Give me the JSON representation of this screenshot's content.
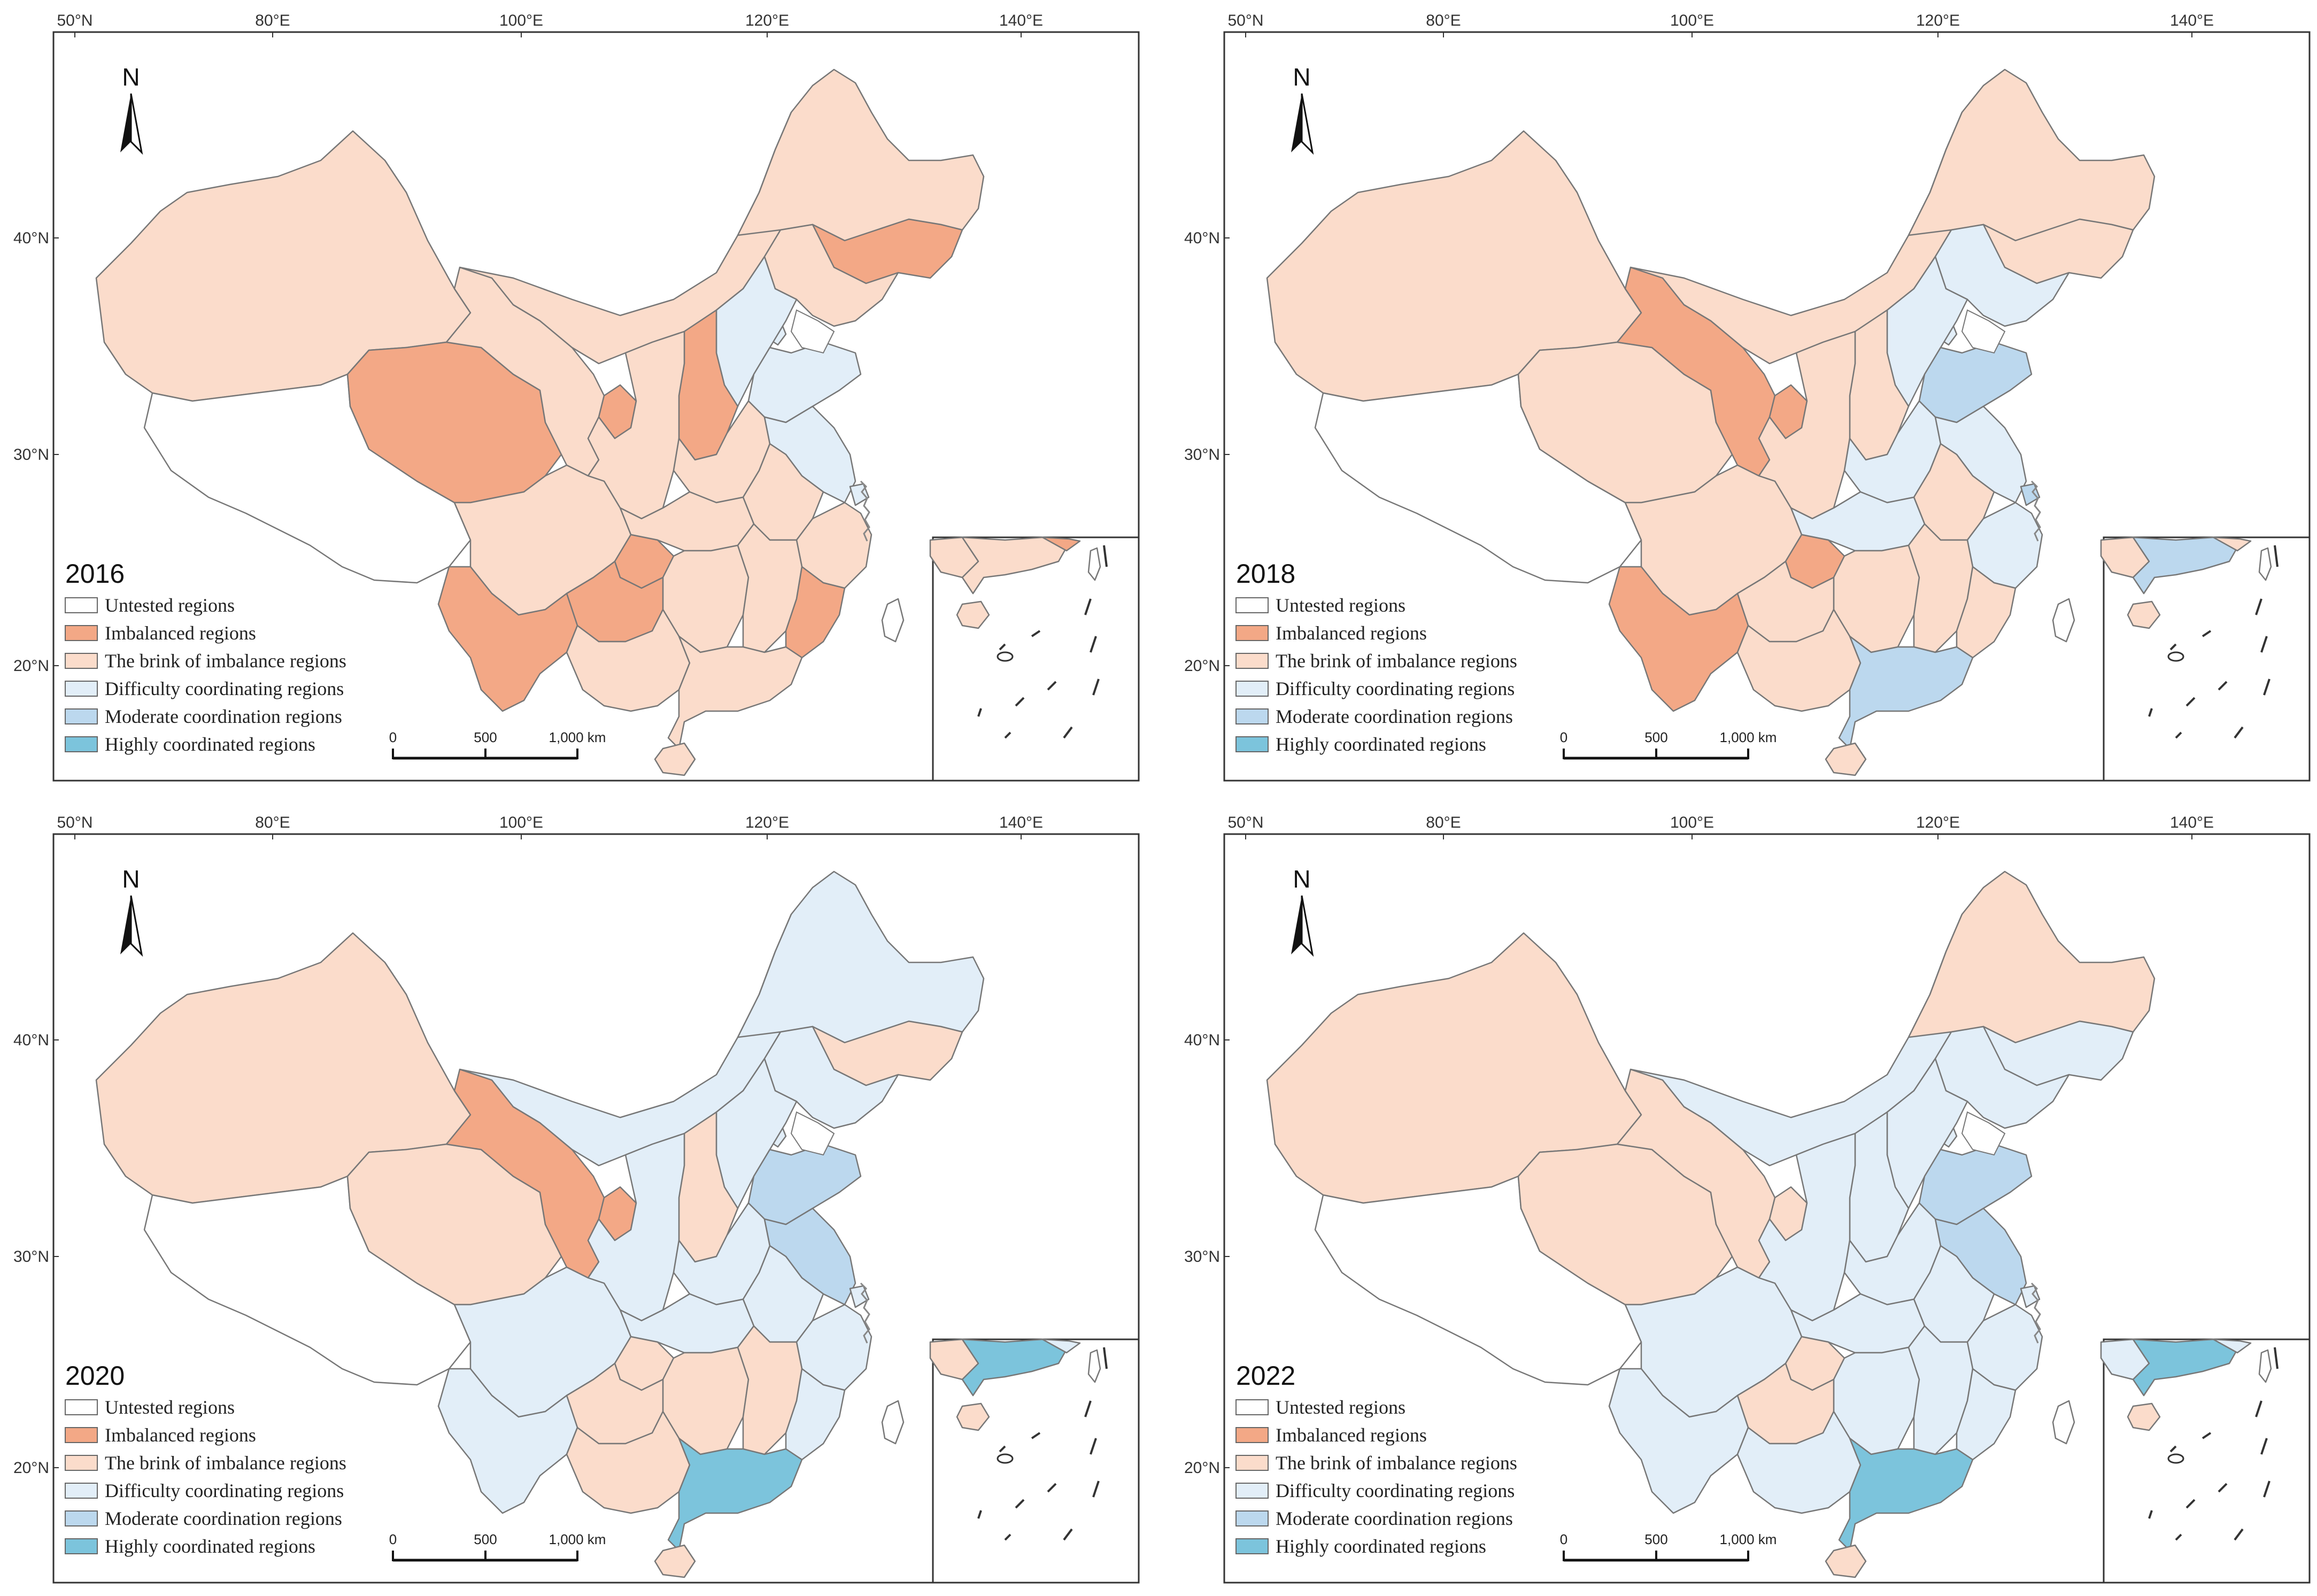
{
  "colors": {
    "untested": "#ffffff",
    "imbalanced": "#f3a886",
    "brink": "#fbdccb",
    "difficulty": "#e2eef8",
    "moderate": "#bcd8ee",
    "highly": "#7cc4dc"
  },
  "legend": [
    {
      "key": "untested",
      "label": "Untested regions"
    },
    {
      "key": "imbalanced",
      "label": "Imbalanced regions"
    },
    {
      "key": "brink",
      "label": "The brink of imbalance regions"
    },
    {
      "key": "difficulty",
      "label": "Difficulty coordinating regions"
    },
    {
      "key": "moderate",
      "label": "Moderate coordination regions"
    },
    {
      "key": "highly",
      "label": "Highly coordinated regions"
    }
  ],
  "lon_labels": [
    "50°N",
    "80°E",
    "100°E",
    "120°E",
    "140°E"
  ],
  "lat_labels": [
    "40°N",
    "30°N",
    "20°N"
  ],
  "north_label": "N",
  "scale_labels": [
    "0",
    "500",
    "1,000 km"
  ],
  "panels": [
    {
      "year": "2016",
      "regions": {
        "xinjiang": "brink",
        "tibet": "untested",
        "qinghai": "imbalanced",
        "gansu": "brink",
        "inner_mongolia": "brink",
        "heilongjiang": "brink",
        "jilin": "imbalanced",
        "liaoning": "brink",
        "beijing": "moderate",
        "tianjin": "difficulty",
        "hebei": "difficulty",
        "shandong": "difficulty",
        "shanxi": "imbalanced",
        "shaanxi": "brink",
        "ningxia": "imbalanced",
        "henan": "brink",
        "jiangsu": "difficulty",
        "anhui": "brink",
        "zhejiang": "brink",
        "shanghai": "difficulty",
        "hubei": "brink",
        "sichuan": "brink",
        "chongqing": "imbalanced",
        "hunan": "brink",
        "jiangxi": "brink",
        "fujian": "imbalanced",
        "guizhou": "imbalanced",
        "yunnan": "imbalanced",
        "guangxi": "brink",
        "guangdong": "brink",
        "hainan": "brink",
        "taiwan": "untested"
      }
    },
    {
      "year": "2018",
      "regions": {
        "xinjiang": "brink",
        "tibet": "untested",
        "qinghai": "brink",
        "gansu": "imbalanced",
        "inner_mongolia": "brink",
        "heilongjiang": "brink",
        "jilin": "brink",
        "liaoning": "difficulty",
        "beijing": "moderate",
        "tianjin": "difficulty",
        "hebei": "difficulty",
        "shandong": "moderate",
        "shanxi": "brink",
        "shaanxi": "brink",
        "ningxia": "imbalanced",
        "henan": "difficulty",
        "jiangsu": "difficulty",
        "anhui": "brink",
        "zhejiang": "difficulty",
        "shanghai": "moderate",
        "hubei": "difficulty",
        "sichuan": "brink",
        "chongqing": "imbalanced",
        "hunan": "brink",
        "jiangxi": "brink",
        "fujian": "brink",
        "guizhou": "brink",
        "yunnan": "imbalanced",
        "guangxi": "brink",
        "guangdong": "moderate",
        "hainan": "brink",
        "taiwan": "untested"
      }
    },
    {
      "year": "2020",
      "regions": {
        "xinjiang": "brink",
        "tibet": "untested",
        "qinghai": "brink",
        "gansu": "imbalanced",
        "inner_mongolia": "difficulty",
        "heilongjiang": "difficulty",
        "jilin": "brink",
        "liaoning": "difficulty",
        "beijing": "moderate",
        "tianjin": "difficulty",
        "hebei": "difficulty",
        "shandong": "moderate",
        "shanxi": "brink",
        "shaanxi": "difficulty",
        "ningxia": "imbalanced",
        "henan": "difficulty",
        "jiangsu": "moderate",
        "anhui": "difficulty",
        "zhejiang": "difficulty",
        "shanghai": "difficulty",
        "hubei": "difficulty",
        "sichuan": "difficulty",
        "chongqing": "brink",
        "hunan": "brink",
        "jiangxi": "brink",
        "fujian": "difficulty",
        "guizhou": "brink",
        "yunnan": "difficulty",
        "guangxi": "brink",
        "guangdong": "highly",
        "hainan": "brink",
        "taiwan": "untested"
      }
    },
    {
      "year": "2022",
      "regions": {
        "xinjiang": "brink",
        "tibet": "untested",
        "qinghai": "brink",
        "gansu": "brink",
        "inner_mongolia": "difficulty",
        "heilongjiang": "brink",
        "jilin": "difficulty",
        "liaoning": "difficulty",
        "beijing": "moderate",
        "tianjin": "difficulty",
        "hebei": "difficulty",
        "shandong": "moderate",
        "shanxi": "difficulty",
        "shaanxi": "difficulty",
        "ningxia": "brink",
        "henan": "difficulty",
        "jiangsu": "moderate",
        "anhui": "difficulty",
        "zhejiang": "difficulty",
        "shanghai": "difficulty",
        "hubei": "difficulty",
        "sichuan": "difficulty",
        "chongqing": "brink",
        "hunan": "difficulty",
        "jiangxi": "difficulty",
        "fujian": "difficulty",
        "guizhou": "brink",
        "yunnan": "difficulty",
        "guangxi": "difficulty",
        "guangdong": "highly",
        "hainan": "brink",
        "taiwan": "untested"
      }
    }
  ]
}
